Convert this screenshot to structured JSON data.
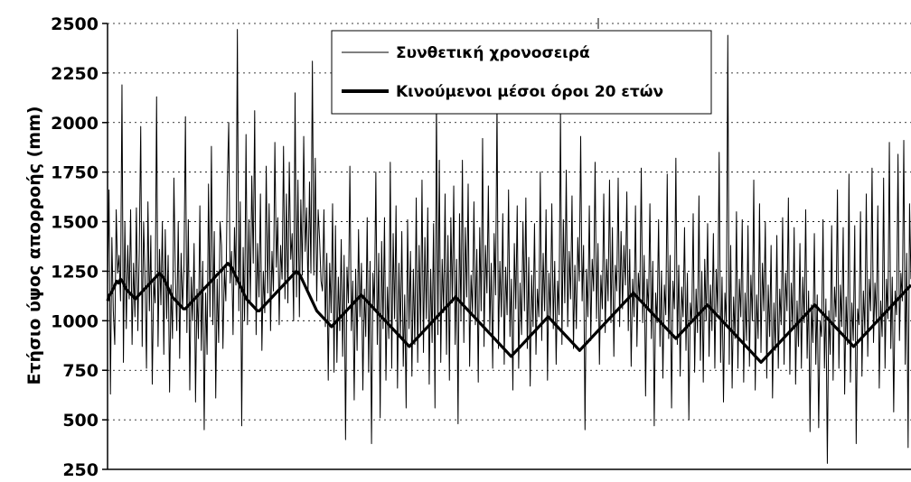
{
  "chart_data": {
    "type": "line",
    "title": "",
    "xlabel": "",
    "ylabel": "Ετήσιο ύψος απορροής (mm)",
    "ylim": [
      250,
      2500
    ],
    "yticks": [
      250,
      500,
      750,
      1000,
      1250,
      1500,
      1750,
      2000,
      2250,
      2500
    ],
    "ytick_labels": [
      "250",
      "500",
      "750",
      "1000",
      "1250",
      "1500",
      "1750",
      "2000",
      "2250",
      "2500"
    ],
    "grid": "horizontal dotted",
    "legend_position": "top-center",
    "series": [
      {
        "name": "Συνθετική χρονοσειρά",
        "style": "thin",
        "color": "#000000",
        "values": [
          1180,
          1660,
          630,
          1420,
          1050,
          880,
          1560,
          1240,
          1330,
          1100,
          2190,
          790,
          1500,
          960,
          1380,
          1110,
          1560,
          880,
          1290,
          1020,
          1570,
          950,
          1360,
          1980,
          870,
          1500,
          1210,
          760,
          1600,
          1050,
          1430,
          680,
          1200,
          1090,
          2130,
          870,
          1360,
          1080,
          1500,
          830,
          1460,
          1010,
          1330,
          640,
          1180,
          910,
          1720,
          1230,
          950,
          1500,
          810,
          1340,
          1060,
          1280,
          2030,
          940,
          1510,
          650,
          1220,
          1000,
          1390,
          590,
          1160,
          910,
          1580,
          850,
          1300,
          450,
          1140,
          830,
          1690,
          1020,
          1880,
          980,
          1450,
          610,
          1210,
          890,
          1500,
          1380,
          860,
          1260,
          1100,
          1680,
          2000,
          1190,
          1350,
          930,
          1470,
          1180,
          2470,
          1050,
          1600,
          470,
          1370,
          1000,
          1940,
          980,
          1510,
          1100,
          1730,
          1290,
          2060,
          930,
          1390,
          1120,
          1640,
          850,
          1250,
          1040,
          1780,
          1140,
          1590,
          950,
          1350,
          1150,
          1900,
          1270,
          1520,
          980,
          1380,
          1210,
          1880,
          1110,
          1640,
          1090,
          1800,
          1310,
          1440,
          1000,
          2150,
          1120,
          1710,
          1020,
          1610,
          1230,
          1930,
          1350,
          1570,
          1140,
          1700,
          1240,
          2310,
          1230,
          1820,
          1100,
          1560,
          1410,
          1200,
          1150,
          1560,
          970,
          1340,
          700,
          1290,
          1040,
          1590,
          740,
          1480,
          790,
          1220,
          950,
          1410,
          820,
          1330,
          400,
          1270,
          1090,
          1780,
          950,
          1200,
          600,
          1260,
          850,
          1460,
          1020,
          1290,
          650,
          1160,
          920,
          1520,
          740,
          1300,
          380,
          1240,
          1060,
          1750,
          880,
          1340,
          510,
          1400,
          960,
          1520,
          700,
          1170,
          910,
          1800,
          760,
          1440,
          1010,
          1580,
          660,
          1290,
          920,
          1450,
          770,
          1130,
          560,
          1510,
          960,
          1350,
          720,
          1260,
          880,
          1620,
          790,
          1380,
          930,
          1710,
          840,
          1420,
          1010,
          1570,
          680,
          1260,
          890,
          1490,
          560,
          2130,
          930,
          1810,
          790,
          1310,
          1040,
          1640,
          830,
          1430,
          700,
          1520,
          1090,
          1680,
          880,
          1310,
          480,
          1540,
          1000,
          1810,
          890,
          1470,
          1120,
          1690,
          770,
          1230,
          1040,
          1600,
          980,
          1360,
          690,
          1470,
          1050,
          1920,
          870,
          1380,
          1140,
          1680,
          950,
          1290,
          760,
          1440,
          1130,
          2100,
          860,
          1300,
          1020,
          1540,
          780,
          1270,
          1030,
          1660,
          920,
          1210,
          650,
          1390,
          1060,
          1580,
          760,
          1190,
          930,
          1500,
          1050,
          1620,
          860,
          1320,
          670,
          1230,
          970,
          1490,
          830,
          1160,
          1020,
          1750,
          900,
          1340,
          1050,
          1560,
          700,
          1240,
          1010,
          1590,
          960,
          1300,
          780,
          1200,
          1030,
          2060,
          880,
          1510,
          1090,
          1760,
          970,
          1350,
          1110,
          1630,
          860,
          1280,
          960,
          1420,
          1200,
          1930,
          1100,
          1380,
          450,
          1260,
          1020,
          1580,
          900,
          1310,
          1150,
          1800,
          1010,
          1390,
          780,
          1230,
          1060,
          1640,
          940,
          1310,
          1100,
          1710,
          990,
          1470,
          820,
          1280,
          1150,
          1720,
          970,
          1450,
          1060,
          1380,
          1180,
          1650,
          950,
          1360,
          770,
          1210,
          1020,
          1580,
          870,
          1240,
          1100,
          1770,
          990,
          1330,
          620,
          1210,
          1050,
          1590,
          910,
          1300,
          470,
          1140,
          990,
          1510,
          870,
          1250,
          710,
          1180,
          1030,
          1740,
          910,
          1330,
          560,
          1200,
          1060,
          1820,
          880,
          1280,
          720,
          1170,
          1020,
          1470,
          850,
          1240,
          500,
          1090,
          990,
          1540,
          740,
          1160,
          940,
          1630,
          800,
          1250,
          690,
          1310,
          1000,
          1490,
          820,
          1180,
          950,
          1440,
          760,
          1260,
          1040,
          1850,
          790,
          1220,
          590,
          1140,
          990,
          2440,
          780,
          1380,
          660,
          1120,
          910,
          1550,
          760,
          1210,
          1020,
          1510,
          690,
          1140,
          900,
          1480,
          770,
          1230,
          1000,
          1710,
          650,
          1130,
          910,
          1590,
          840,
          1290,
          1050,
          1500,
          710,
          1180,
          920,
          1380,
          610,
          1090,
          850,
          1430,
          760,
          1160,
          980,
          1520,
          780,
          1240,
          1050,
          1620,
          730,
          1190,
          960,
          1470,
          680,
          1100,
          870,
          1390,
          760,
          1220,
          990,
          1560,
          810,
          1150,
          440,
          1080,
          890,
          1440,
          780,
          1130,
          460,
          1000,
          920,
          1510,
          760,
          1110,
          280,
          1050,
          830,
          1480,
          700,
          1170,
          1020,
          1660,
          760,
          1180,
          970,
          1470,
          630,
          1120,
          880,
          1740,
          690,
          1090,
          900,
          1480,
          380,
          1060,
          980,
          1550,
          720,
          1150,
          940,
          1640,
          820,
          1210,
          1050,
          1770,
          890,
          1190,
          1000,
          1580,
          660,
          1100,
          920,
          1720,
          760,
          1210,
          1010,
          1900,
          860,
          1220,
          540,
          1150,
          1030,
          1840,
          900,
          1240,
          1100,
          1910,
          780,
          1340,
          360,
          1590,
          1210
        ]
      },
      {
        "name": "Κινούμενοι μέσοι όροι 20 ετών",
        "style": "thick",
        "color": "#000000",
        "values": [
          1100,
          1130,
          1140,
          1160,
          1180,
          1200,
          1190,
          1210,
          1200,
          1180,
          1160,
          1150,
          1140,
          1130,
          1120,
          1110,
          1120,
          1130,
          1140,
          1150,
          1160,
          1170,
          1180,
          1190,
          1200,
          1210,
          1220,
          1230,
          1240,
          1230,
          1220,
          1200,
          1180,
          1160,
          1140,
          1120,
          1110,
          1100,
          1090,
          1080,
          1070,
          1060,
          1060,
          1070,
          1080,
          1090,
          1100,
          1110,
          1120,
          1130,
          1140,
          1150,
          1160,
          1170,
          1180,
          1190,
          1200,
          1210,
          1220,
          1230,
          1240,
          1250,
          1260,
          1270,
          1280,
          1290,
          1280,
          1270,
          1250,
          1230,
          1210,
          1190,
          1170,
          1150,
          1130,
          1110,
          1100,
          1090,
          1080,
          1070,
          1060,
          1050,
          1050,
          1060,
          1070,
          1080,
          1090,
          1100,
          1110,
          1120,
          1130,
          1140,
          1150,
          1160,
          1170,
          1180,
          1190,
          1200,
          1210,
          1220,
          1230,
          1240,
          1250,
          1240,
          1230,
          1210,
          1190,
          1170,
          1150,
          1130,
          1110,
          1090,
          1070,
          1050,
          1040,
          1030,
          1020,
          1010,
          1000,
          990,
          980,
          970,
          980,
          990,
          1000,
          1010,
          1020,
          1030,
          1040,
          1050,
          1060,
          1070,
          1080,
          1090,
          1100,
          1110,
          1120,
          1130,
          1120,
          1110,
          1100,
          1090,
          1080,
          1070,
          1060,
          1050,
          1040,
          1030,
          1020,
          1010,
          1000,
          990,
          980,
          970,
          960,
          950,
          940,
          930,
          920,
          910,
          900,
          890,
          880,
          870,
          880,
          890,
          900,
          910,
          920,
          930,
          940,
          950,
          960,
          970,
          980,
          990,
          1000,
          1010,
          1020,
          1030,
          1040,
          1050,
          1060,
          1070,
          1080,
          1090,
          1100,
          1110,
          1120,
          1110,
          1100,
          1090,
          1080,
          1070,
          1060,
          1050,
          1040,
          1030,
          1020,
          1010,
          1000,
          990,
          980,
          970,
          960,
          950,
          940,
          930,
          920,
          910,
          900,
          890,
          880,
          870,
          860,
          850,
          840,
          830,
          820,
          830,
          840,
          850,
          860,
          870,
          880,
          890,
          900,
          910,
          920,
          930,
          940,
          950,
          960,
          970,
          980,
          990,
          1000,
          1010,
          1020,
          1010,
          1000,
          990,
          980,
          970,
          960,
          950,
          940,
          930,
          920,
          910,
          900,
          890,
          880,
          870,
          860,
          850,
          860,
          870,
          880,
          890,
          900,
          910,
          920,
          930,
          940,
          950,
          960,
          970,
          980,
          990,
          1000,
          1010,
          1020,
          1030,
          1040,
          1050,
          1060,
          1070,
          1080,
          1090,
          1100,
          1110,
          1120,
          1130,
          1140,
          1130,
          1120,
          1110,
          1100,
          1090,
          1080,
          1070,
          1060,
          1050,
          1040,
          1030,
          1020,
          1010,
          1000,
          990,
          980,
          970,
          960,
          950,
          940,
          930,
          920,
          910,
          920,
          930,
          940,
          950,
          960,
          970,
          980,
          990,
          1000,
          1010,
          1020,
          1030,
          1040,
          1050,
          1060,
          1070,
          1080,
          1070,
          1060,
          1050,
          1040,
          1030,
          1020,
          1010,
          1000,
          990,
          980,
          970,
          960,
          950,
          940,
          930,
          920,
          910,
          900,
          890,
          880,
          870,
          860,
          850,
          840,
          830,
          820,
          810,
          800,
          790,
          800,
          810,
          820,
          830,
          840,
          850,
          860,
          870,
          880,
          890,
          900,
          910,
          920,
          930,
          940,
          950,
          960,
          970,
          980,
          990,
          1000,
          1010,
          1020,
          1030,
          1040,
          1050,
          1060,
          1070,
          1080,
          1070,
          1060,
          1050,
          1040,
          1030,
          1020,
          1010,
          1000,
          990,
          980,
          970,
          960,
          950,
          940,
          930,
          920,
          910,
          900,
          890,
          880,
          870,
          880,
          890,
          900,
          910,
          920,
          930,
          940,
          950,
          960,
          970,
          980,
          990,
          1000,
          1010,
          1020,
          1030,
          1040,
          1050,
          1060,
          1070,
          1080,
          1090,
          1100,
          1110,
          1120,
          1130,
          1140,
          1150,
          1160,
          1170,
          1180
        ]
      }
    ]
  }
}
